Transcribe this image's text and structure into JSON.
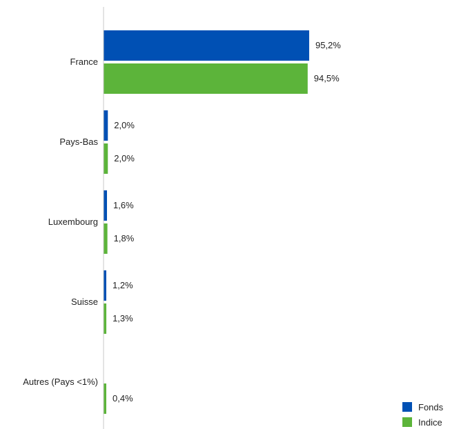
{
  "chart_data": {
    "type": "bar",
    "orientation": "horizontal",
    "categories": [
      "France",
      "Pays-Bas",
      "Luxembourg",
      "Suisse",
      "Autres (Pays <1%)"
    ],
    "series": [
      {
        "name": "Fonds",
        "color": "#0050b4",
        "values": [
          95.2,
          2.0,
          1.6,
          1.2,
          null
        ],
        "labels": [
          "95,2%",
          "2,0%",
          "1,6%",
          "1,2%",
          ""
        ]
      },
      {
        "name": "Indice",
        "color": "#5cb43a",
        "values": [
          94.5,
          2.0,
          1.8,
          1.3,
          0.4
        ],
        "labels": [
          "94,5%",
          "2,0%",
          "1,8%",
          "1,3%",
          "0,4%"
        ]
      }
    ],
    "title": "",
    "xlabel": "",
    "ylabel": "",
    "xlim": [
      0,
      100
    ],
    "grid": false,
    "legend_position": "bottom-right"
  },
  "axis_color": "#c8c8c8"
}
